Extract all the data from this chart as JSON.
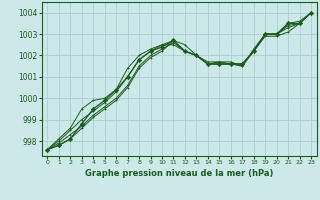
{
  "title": "Graphe pression niveau de la mer (hPa)",
  "background_color": "#cce8e8",
  "grid_color": "#aacece",
  "line_color": "#1a5c1a",
  "marker_color": "#1a5c1a",
  "xlim": [
    -0.5,
    23.5
  ],
  "ylim": [
    997.3,
    1004.5
  ],
  "yticks": [
    998,
    999,
    1000,
    1001,
    1002,
    1003,
    1004
  ],
  "xtick_labels": [
    "0",
    "1",
    "2",
    "3",
    "4",
    "5",
    "6",
    "7",
    "8",
    "9",
    "10",
    "11",
    "12",
    "13",
    "14",
    "15",
    "16",
    "17",
    "18",
    "19",
    "20",
    "21",
    "22",
    "23"
  ],
  "series": [
    [
      997.6,
      997.8,
      998.1,
      998.6,
      999.1,
      999.5,
      999.9,
      1000.5,
      1001.4,
      1001.9,
      1002.2,
      1002.7,
      1002.2,
      1002.0,
      1001.6,
      1001.6,
      1001.6,
      1001.6,
      1002.2,
      1002.9,
      1002.9,
      1003.1,
      1003.5,
      1004.0
    ],
    [
      997.6,
      997.9,
      998.3,
      998.7,
      999.2,
      999.6,
      1000.0,
      1000.6,
      1001.5,
      1002.0,
      1002.3,
      1002.6,
      1002.2,
      1002.0,
      1001.6,
      1001.6,
      1001.6,
      1001.5,
      1002.2,
      1003.0,
      1003.0,
      1003.4,
      1003.5,
      1004.0
    ],
    [
      997.6,
      998.0,
      998.5,
      999.0,
      999.4,
      999.8,
      1000.3,
      1001.0,
      1001.8,
      1002.2,
      1002.5,
      1002.5,
      1002.2,
      1002.0,
      1001.6,
      1001.7,
      1001.6,
      1001.6,
      1002.2,
      1003.0,
      1003.0,
      1003.3,
      1003.5,
      1004.0
    ],
    [
      997.6,
      998.1,
      998.6,
      999.5,
      999.9,
      1000.0,
      1000.4,
      1001.4,
      1002.0,
      1002.3,
      1002.5,
      1002.7,
      1002.5,
      1002.0,
      1001.7,
      1001.7,
      1001.7,
      1001.5,
      1002.3,
      1003.0,
      1003.0,
      1003.5,
      1003.6,
      1004.0
    ]
  ],
  "series_main": [
    997.6,
    997.8,
    998.1,
    998.8,
    999.5,
    999.9,
    1000.4,
    1001.0,
    1001.8,
    1002.2,
    1002.4,
    1002.7,
    1002.2,
    1002.0,
    1001.6,
    1001.6,
    1001.6,
    1001.6,
    1002.2,
    1003.0,
    1003.0,
    1003.5,
    1003.5,
    1004.0
  ]
}
